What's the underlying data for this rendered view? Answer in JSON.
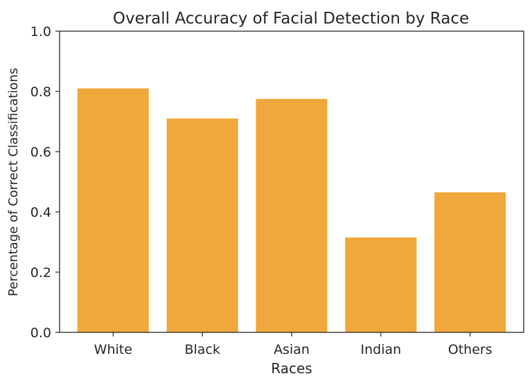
{
  "chart_data": {
    "type": "bar",
    "title": "Overall Accuracy of Facial Detection by Race",
    "xlabel": "Races",
    "ylabel": "Percentage of Correct Classifications",
    "categories": [
      "White",
      "Black",
      "Asian",
      "Indian",
      "Others"
    ],
    "values": [
      0.81,
      0.71,
      0.775,
      0.315,
      0.465
    ],
    "ylim": [
      0.0,
      1.0
    ],
    "yticks": [
      "0.0",
      "0.2",
      "0.4",
      "0.6",
      "0.8",
      "1.0"
    ],
    "grid": false,
    "legend": "none",
    "colors": {
      "bar": "#F0A73B",
      "axis": "#262626",
      "background": "#FFFFFF"
    }
  }
}
